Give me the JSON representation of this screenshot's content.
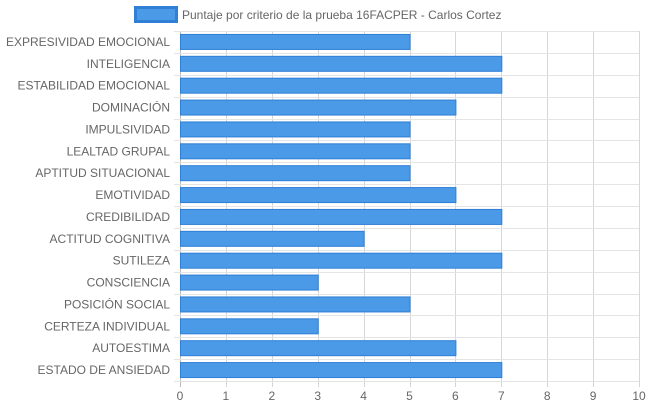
{
  "chart_data": {
    "type": "bar",
    "orientation": "horizontal",
    "categories": [
      "EXPRESIVIDAD EMOCIONAL",
      "INTELIGENCIA",
      "ESTABILIDAD EMOCIONAL",
      "DOMINACIÓN",
      "IMPULSIVIDAD",
      "LEALTAD GRUPAL",
      "APTITUD SITUACIONAL",
      "EMOTIVIDAD",
      "CREDIBILIDAD",
      "ACTITUD COGNITIVA",
      "SUTILEZA",
      "CONSCIENCIA",
      "POSICIÓN SOCIAL",
      "CERTEZA INDIVIDUAL",
      "AUTOESTIMA",
      "ESTADO DE ANSIEDAD"
    ],
    "series": [
      {
        "name": "Puntaje por criterio de la prueba 16FACPER - Carlos Cortez",
        "values": [
          5,
          7,
          7,
          6,
          5,
          5,
          5,
          6,
          7,
          4,
          7,
          3,
          5,
          3,
          6,
          7
        ]
      }
    ],
    "xlim": [
      0,
      10
    ],
    "xticks": [
      "0",
      "1",
      "2",
      "3",
      "4",
      "5",
      "6",
      "7",
      "8",
      "9",
      "10"
    ],
    "grid": true,
    "legend_position": "top",
    "colors": {
      "bar_fill": "#4a9ae8",
      "bar_border": "#2f7fd6",
      "grid": "#dddddd",
      "text": "#666666"
    }
  }
}
